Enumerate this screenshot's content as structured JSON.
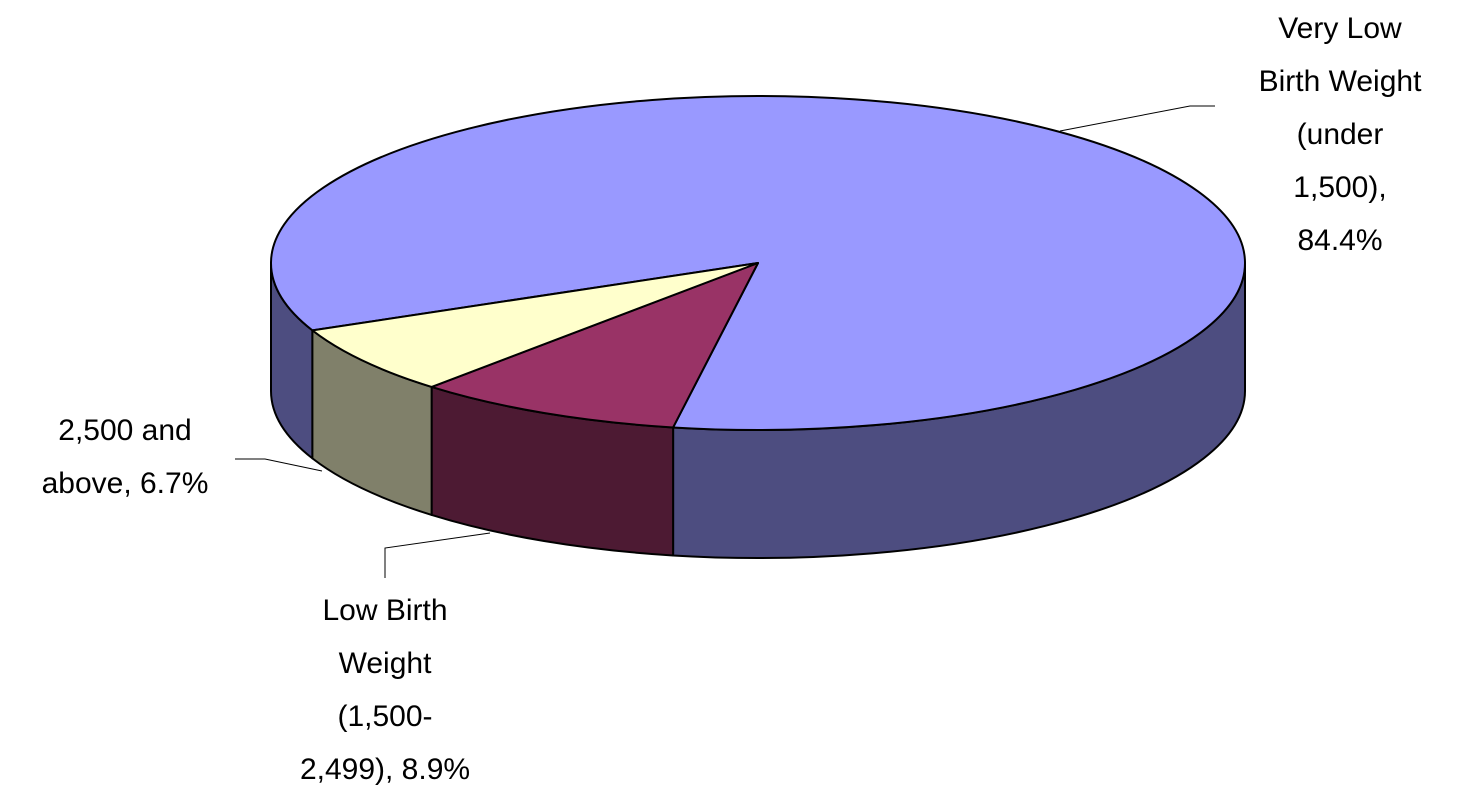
{
  "chart_data": {
    "type": "pie3d",
    "values": [
      84.4,
      8.9,
      6.7
    ],
    "value_labels": [
      "Very Low Birth Weight (under 1,500), 84.4%",
      "Low Birth Weight (1,500-2,499), 8.9%",
      "2,500 and above, 6.7%"
    ],
    "colors": [
      "#9999ff",
      "#993366",
      "#ffffcc"
    ],
    "side_colors": [
      "#4d4d80",
      "#4d1a33",
      "#80806a"
    ]
  }
}
